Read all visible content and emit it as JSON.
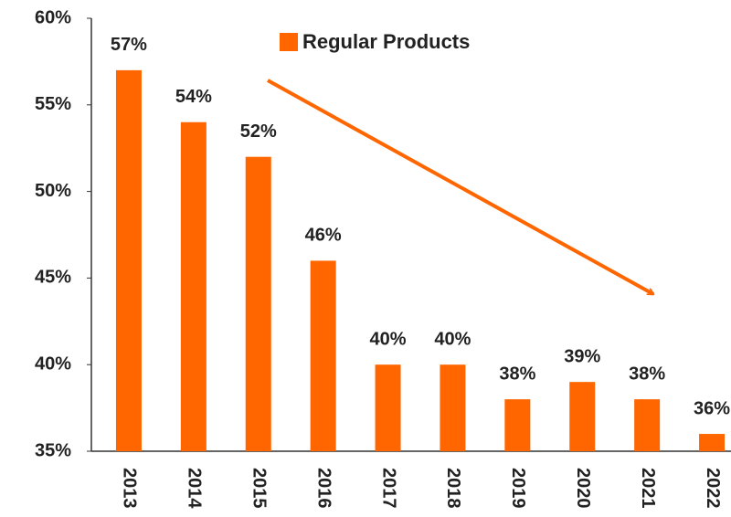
{
  "chart_data": {
    "type": "bar",
    "categories": [
      "2013",
      "2014",
      "2015",
      "2016",
      "2017",
      "2018",
      "2019",
      "2020",
      "2021",
      "2022"
    ],
    "series": [
      {
        "name": "Regular Products",
        "color": "#ff6600",
        "values": [
          57,
          54,
          52,
          46,
          40,
          40,
          38,
          39,
          38,
          36
        ],
        "value_labels": [
          "57%",
          "54%",
          "52%",
          "46%",
          "40%",
          "40%",
          "38%",
          "39%",
          "38%",
          "36%"
        ]
      }
    ],
    "ylim": [
      35,
      60
    ],
    "yticks": [
      {
        "value": 35,
        "label": "35%"
      },
      {
        "value": 40,
        "label": "40%"
      },
      {
        "value": 45,
        "label": "45%"
      },
      {
        "value": 50,
        "label": "50%"
      },
      {
        "value": 55,
        "label": "55%"
      },
      {
        "value": 60,
        "label": "60%"
      }
    ],
    "grid": false
  }
}
